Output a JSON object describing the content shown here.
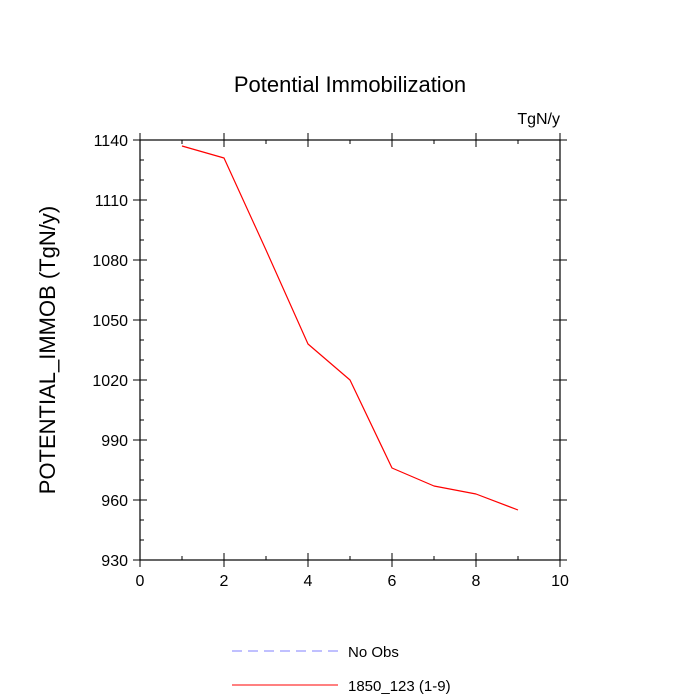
{
  "chart_data": {
    "type": "line",
    "title": "Potential Immobilization",
    "units_label": "TgN/y",
    "xlabel": "",
    "ylabel": "POTENTIAL_IMMOB  (TgN/y)",
    "xlim": [
      0,
      10
    ],
    "ylim": [
      930,
      1140
    ],
    "x_ticks": [
      0,
      2,
      4,
      6,
      8,
      10
    ],
    "y_ticks": [
      930,
      960,
      990,
      1020,
      1050,
      1080,
      1110,
      1140
    ],
    "x_minor_step": 1,
    "y_minor_step": 10,
    "grid": false,
    "series": [
      {
        "name": "1850_123 (1-9)",
        "color": "#ff0000",
        "dash": "solid",
        "x": [
          1,
          2,
          3,
          4,
          5,
          6,
          7,
          8,
          9
        ],
        "values": [
          1137,
          1131,
          1085,
          1038,
          1020,
          976,
          967,
          963,
          955
        ]
      }
    ],
    "legend": [
      {
        "label": "No Obs",
        "color": "#8080ff",
        "dash": "dashed"
      },
      {
        "label": "1850_123 (1-9)",
        "color": "#ff0000",
        "dash": "solid"
      }
    ]
  }
}
